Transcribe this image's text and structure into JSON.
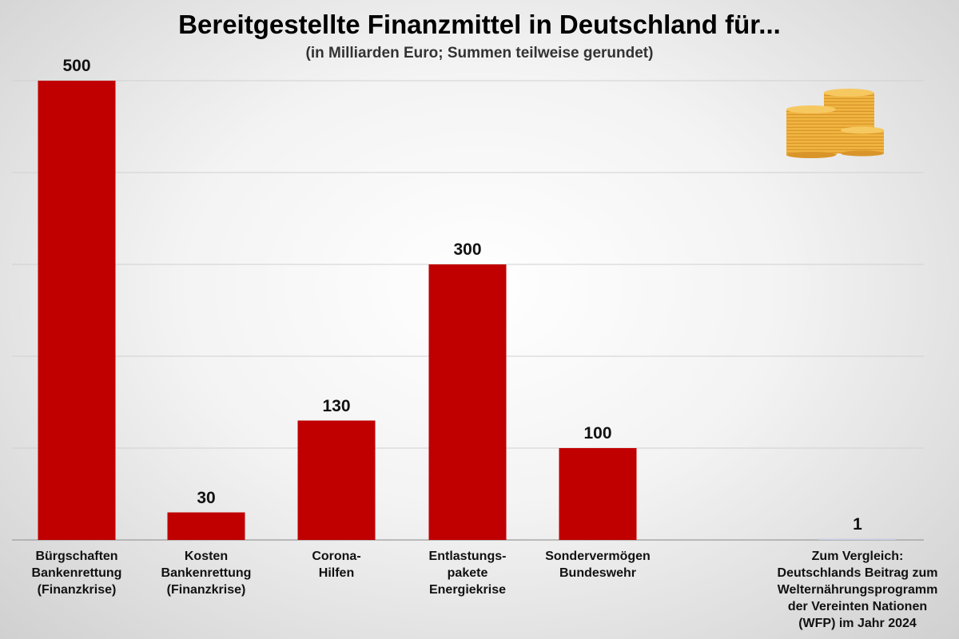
{
  "chart_data": {
    "type": "bar",
    "title": "Bereitgestellte Finanzmittel in Deutschland für...",
    "subtitle": "(in Milliarden Euro; Summen teilweise gerundet)",
    "categories": [
      [
        "Bürgschaften",
        "Bankenrettung",
        "(Finanzkrise)"
      ],
      [
        "Kosten",
        "Bankenrettung",
        "(Finanzkrise)"
      ],
      [
        "Corona-",
        "Hilfen"
      ],
      [
        "Entlastungs-",
        "pakete",
        "Energiekrise"
      ],
      [
        "Sondervermögen",
        "Bundeswehr"
      ],
      [
        "Zum Vergleich:",
        "Deutschlands Beitrag zum",
        "Welternährungsprogramm",
        "der Vereinten Nationen",
        "(WFP) im Jahr 2024"
      ]
    ],
    "values": [
      500,
      30,
      130,
      300,
      100,
      1
    ],
    "value_labels": [
      "500",
      "30",
      "130",
      "300",
      "100",
      "1"
    ],
    "ylim": [
      0,
      500
    ],
    "grid": true,
    "bar_color": "#c00000",
    "comparison_bar_color": "#c8cde6",
    "xlabel": "",
    "ylabel": ""
  },
  "decoration": {
    "icon": "coin-stacks-icon"
  }
}
